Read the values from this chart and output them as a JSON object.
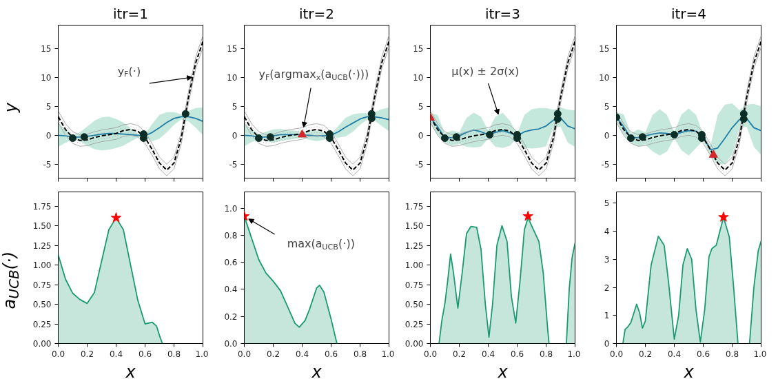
{
  "chart_data": [
    {
      "type": "line",
      "title": "itr=1",
      "ylabel": "y",
      "xlim": [
        0,
        1
      ],
      "ylim": [
        -7.4,
        19
      ],
      "tick_labels": "y",
      "x": [
        0,
        0.05,
        0.1,
        0.15,
        0.2,
        0.25,
        0.3,
        0.35,
        0.4,
        0.45,
        0.5,
        0.55,
        0.6,
        0.65,
        0.7,
        0.75,
        0.8,
        0.85,
        0.9,
        0.95,
        1.0
      ],
      "xticks": [
        {
          "value": 0,
          "label": null
        },
        {
          "value": 0.2,
          "label": null
        },
        {
          "value": 0.4,
          "label": null
        },
        {
          "value": 0.6,
          "label": null
        },
        {
          "value": 0.8,
          "label": null
        },
        {
          "value": 1,
          "label": null
        }
      ],
      "yticks": [
        -5,
        0,
        5,
        10,
        15
      ],
      "series": [
        {
          "color": "#1f7ea8",
          "values": [
            0,
            -0.1,
            -0.3,
            -0.3,
            -0.2,
            0,
            0.2,
            0.3,
            0.3,
            0.2,
            0.1,
            0,
            -0.1,
            0.5,
            1.3,
            2.2,
            2.9,
            3.2,
            3.2,
            2.9,
            2.4
          ],
          "lower": [
            -2,
            -1.3,
            -0.7,
            -1.0,
            -1.8,
            -2.4,
            -2.6,
            -2.5,
            -2.2,
            -1.8,
            -1.1,
            -0.4,
            -0.4,
            -1.0,
            -0.6,
            0.5,
            1.8,
            2.7,
            2.4,
            1.3,
            0
          ],
          "upper": [
            2,
            1,
            0,
            0.5,
            1.5,
            2.5,
            3.1,
            3.2,
            2.8,
            2.2,
            1.2,
            0.3,
            0.2,
            2,
            3.5,
            4,
            4,
            3.6,
            4.2,
            4.7,
            4.8
          ]
        },
        {
          "color": "#a0a0a0",
          "values": [
            2.2,
            0.0,
            -1.4,
            -1.9,
            -1.8,
            -1.4,
            -1.1,
            -0.9,
            -0.7,
            -0.2,
            0.0,
            -0.3,
            -1.4,
            -3.5,
            -5.8,
            -7.0,
            -5.8,
            -1.5,
            5.5,
            11.5,
            15.2
          ]
        },
        {
          "color": "#a0a0a0",
          "values": [
            4.2,
            2.0,
            0.6,
            0.1,
            0.2,
            0.6,
            0.9,
            1.1,
            1.3,
            1.8,
            2.0,
            1.7,
            0.6,
            -1.5,
            -3.8,
            -5.0,
            -3.8,
            0.5,
            7.5,
            13.5,
            17.2
          ]
        },
        {
          "color": "#a0a0a0",
          "line_style": "dotted",
          "values": [
            2.7,
            0.5,
            -0.9,
            -1.4,
            -1.3,
            -0.9,
            -0.6,
            -0.4,
            -0.2,
            0.3,
            0.5,
            0.2,
            -0.9,
            -3.0,
            -5.3,
            -6.5,
            -5.3,
            -1.0,
            6.0,
            12.0,
            15.7
          ]
        },
        {
          "color": "#a0a0a0",
          "line_style": "dotted",
          "values": [
            3.7,
            1.5,
            0.1,
            -0.4,
            -0.3,
            0.1,
            0.4,
            0.6,
            0.8,
            1.3,
            1.5,
            1.2,
            0.1,
            -2.0,
            -4.3,
            -5.5,
            -4.3,
            0.0,
            7.0,
            13.0,
            16.7
          ]
        },
        {
          "color": "#000000",
          "line_style": "dashed",
          "values": [
            3.2,
            1.0,
            -0.4,
            -0.9,
            -0.8,
            -0.4,
            -0.1,
            0.1,
            0.3,
            0.8,
            1.0,
            0.7,
            -0.4,
            -2.5,
            -4.8,
            -6.0,
            -4.8,
            -0.5,
            6.5,
            12.5,
            16.2
          ]
        },
        {
          "type": "scatter",
          "marker": "circle",
          "color": "#0d2e26",
          "x": [
            0.1,
            0.18,
            0.59,
            0.59,
            0.88
          ],
          "values": [
            -0.5,
            -0.3,
            0.2,
            -0.5,
            3.7
          ]
        }
      ],
      "annotations": [
        {
          "text": "y$_{F}$(·)",
          "x": 0.925,
          "y": 10
        }
      ]
    },
    {
      "type": "line",
      "title": "itr=2",
      "xlim": [
        0,
        1
      ],
      "ylim": [
        -7.4,
        19
      ],
      "tick_labels": "y",
      "x": [
        0,
        0.05,
        0.1,
        0.15,
        0.2,
        0.25,
        0.3,
        0.35,
        0.4,
        0.45,
        0.5,
        0.55,
        0.6,
        0.65,
        0.7,
        0.75,
        0.8,
        0.85,
        0.9,
        0.95,
        1.0
      ],
      "xticks": [
        {
          "value": 0,
          "label": null
        },
        {
          "value": 0.2,
          "label": null
        },
        {
          "value": 0.4,
          "label": null
        },
        {
          "value": 0.6,
          "label": null
        },
        {
          "value": 0.8,
          "label": null
        },
        {
          "value": 1,
          "label": null
        }
      ],
      "yticks": [
        -5,
        0,
        5,
        10,
        15
      ],
      "series": [
        {
          "color": "#1f7ea8",
          "values": [
            0,
            -0.1,
            -0.3,
            -0.3,
            -0.1,
            0.1,
            0.1,
            0.1,
            0.1,
            0,
            -0.1,
            -0.1,
            0,
            0.6,
            1.4,
            2.1,
            2.8,
            3.2,
            3.2,
            3.0,
            2.7
          ],
          "lower": [
            -1.9,
            -1.2,
            -0.7,
            -1,
            -1.3,
            -1,
            -0.8,
            -0.6,
            -0.4,
            -0.8,
            -1,
            -0.8,
            -0.3,
            -0.4,
            -0.2,
            0.6,
            1.8,
            2.7,
            2.5,
            1.6,
            0.7
          ],
          "upper": [
            2,
            1,
            0.2,
            0.6,
            1,
            1.1,
            0.9,
            0.8,
            0.6,
            0.8,
            0.8,
            0.5,
            0.2,
            1.6,
            3,
            3.6,
            3.8,
            3.8,
            4,
            4.5,
            4.8
          ]
        },
        {
          "color": "#a0a0a0",
          "values": [
            2.2,
            0.0,
            -1.4,
            -1.9,
            -1.8,
            -1.4,
            -1.1,
            -0.9,
            -0.7,
            -0.2,
            0.0,
            -0.3,
            -1.4,
            -3.5,
            -5.8,
            -7.0,
            -5.8,
            -1.5,
            5.5,
            11.5,
            15.2
          ]
        },
        {
          "color": "#a0a0a0",
          "values": [
            4.2,
            2.0,
            0.6,
            0.1,
            0.2,
            0.6,
            0.9,
            1.1,
            1.3,
            1.8,
            2.0,
            1.7,
            0.6,
            -1.5,
            -3.8,
            -5.0,
            -3.8,
            0.5,
            7.5,
            13.5,
            17.2
          ]
        },
        {
          "color": "#a0a0a0",
          "line_style": "dotted",
          "values": [
            2.7,
            0.5,
            -0.9,
            -1.4,
            -1.3,
            -0.9,
            -0.6,
            -0.4,
            -0.2,
            0.3,
            0.5,
            0.2,
            -0.9,
            -3.0,
            -5.3,
            -6.5,
            -5.3,
            -1.0,
            6.0,
            12.0,
            15.7
          ]
        },
        {
          "color": "#a0a0a0",
          "line_style": "dotted",
          "values": [
            3.7,
            1.5,
            0.1,
            -0.4,
            -0.3,
            0.1,
            0.4,
            0.6,
            0.8,
            1.3,
            1.5,
            1.2,
            0.1,
            -2.0,
            -4.3,
            -5.5,
            -4.3,
            0.0,
            7.0,
            13.0,
            16.7
          ]
        },
        {
          "color": "#000000",
          "line_style": "dashed",
          "values": [
            3.2,
            1.0,
            -0.4,
            -0.9,
            -0.8,
            -0.4,
            -0.1,
            0.1,
            0.3,
            0.8,
            1.0,
            0.7,
            -0.4,
            -2.5,
            -4.8,
            -6.0,
            -4.8,
            -0.5,
            6.5,
            12.5,
            16.2
          ]
        },
        {
          "type": "scatter",
          "marker": "circle",
          "color": "#0d2e26",
          "x": [
            0.1,
            0.18,
            0.59,
            0.59,
            0.88,
            0.88
          ],
          "values": [
            -0.5,
            -0.3,
            0.2,
            -0.5,
            3.7,
            2.9
          ]
        },
        {
          "type": "scatter",
          "marker": "triangle",
          "color": "#d62728",
          "x": [
            0.4
          ],
          "values": [
            0.1
          ]
        }
      ],
      "annotations": [
        {
          "text": "y$_{F}$(argmax$_{x}$(a$_{UCB}$(·)))",
          "x": 0.41,
          "y": 1.4
        }
      ]
    },
    {
      "type": "line",
      "title": "itr=3",
      "xlim": [
        0,
        1
      ],
      "ylim": [
        -7.4,
        19
      ],
      "tick_labels": "y",
      "x": [
        0,
        0.05,
        0.1,
        0.15,
        0.2,
        0.25,
        0.3,
        0.35,
        0.4,
        0.45,
        0.5,
        0.55,
        0.6,
        0.65,
        0.7,
        0.75,
        0.8,
        0.85,
        0.9,
        0.95,
        1.0
      ],
      "xticks": [
        {
          "value": 0,
          "label": null
        },
        {
          "value": 0.2,
          "label": null
        },
        {
          "value": 0.4,
          "label": null
        },
        {
          "value": 0.6,
          "label": null
        },
        {
          "value": 0.8,
          "label": null
        },
        {
          "value": 1,
          "label": null
        }
      ],
      "yticks": [
        -5,
        0,
        5,
        10,
        15
      ],
      "series": [
        {
          "color": "#1f7ea8",
          "values": [
            3.0,
            1.5,
            -0.5,
            -0.4,
            -0.1,
            0.5,
            0.9,
            0.6,
            0.1,
            0.5,
            0.8,
            0.4,
            -0.1,
            0.6,
            0.9,
            1.1,
            1.6,
            2.6,
            3.0,
            1.6,
            1.1
          ],
          "lower": [
            2,
            0,
            -1.3,
            -1.8,
            -1.5,
            -2,
            -2.1,
            -2,
            -0.6,
            -2,
            -2.2,
            -1.8,
            -0.4,
            -2.2,
            -2.3,
            -2.2,
            -1.9,
            1.3,
            1.5,
            -1.3,
            -2.0
          ],
          "upper": [
            3.9,
            3.5,
            0.3,
            0.8,
            0.5,
            3,
            3.9,
            3.2,
            0.8,
            3.2,
            3.9,
            2.5,
            0.2,
            3.5,
            4.5,
            4.7,
            4.7,
            4.4,
            4.8,
            4.4,
            4.3
          ]
        },
        {
          "color": "#a0a0a0",
          "values": [
            2.2,
            0.0,
            -1.4,
            -1.9,
            -1.8,
            -1.4,
            -1.1,
            -0.9,
            -0.7,
            -0.2,
            0.0,
            -0.3,
            -1.4,
            -3.5,
            -5.8,
            -7.0,
            -5.8,
            -1.5,
            5.5,
            11.5,
            15.2
          ]
        },
        {
          "color": "#a0a0a0",
          "values": [
            4.2,
            2.0,
            0.6,
            0.1,
            0.2,
            0.6,
            0.9,
            1.1,
            1.3,
            1.8,
            2.0,
            1.7,
            0.6,
            -1.5,
            -3.8,
            -5.0,
            -3.8,
            0.5,
            7.5,
            13.5,
            17.2
          ]
        },
        {
          "color": "#a0a0a0",
          "line_style": "dotted",
          "values": [
            2.7,
            0.5,
            -0.9,
            -1.4,
            -1.3,
            -0.9,
            -0.6,
            -0.4,
            -0.2,
            0.3,
            0.5,
            0.2,
            -0.9,
            -3.0,
            -5.3,
            -6.5,
            -5.3,
            -1.0,
            6.0,
            12.0,
            15.7
          ]
        },
        {
          "color": "#a0a0a0",
          "line_style": "dotted",
          "values": [
            3.7,
            1.5,
            0.1,
            -0.4,
            -0.3,
            0.1,
            0.4,
            0.6,
            0.8,
            1.3,
            1.5,
            1.2,
            0.1,
            -2.0,
            -4.3,
            -5.5,
            -4.3,
            0.0,
            7.0,
            13.0,
            16.7
          ]
        },
        {
          "color": "#000000",
          "line_style": "dashed",
          "values": [
            3.2,
            1.0,
            -0.4,
            -0.9,
            -0.8,
            -0.4,
            -0.1,
            0.1,
            0.3,
            0.8,
            1.0,
            0.7,
            -0.4,
            -2.5,
            -4.8,
            -6.0,
            -4.8,
            -0.5,
            6.5,
            12.5,
            16.2
          ]
        },
        {
          "type": "scatter",
          "marker": "circle",
          "color": "#0d2e26",
          "x": [
            0.1,
            0.18,
            0.41,
            0.6,
            0.6,
            0.88,
            0.88
          ],
          "values": [
            -0.5,
            -0.3,
            0.1,
            0.1,
            -0.5,
            3.7,
            2.8
          ]
        },
        {
          "type": "scatter",
          "marker": "triangle",
          "color": "#d62728",
          "x": [
            0
          ],
          "values": [
            3.0
          ]
        }
      ],
      "annotations": [
        {
          "text": "μ(x) ± 2σ(x)",
          "x": 0.47,
          "y": 3.6
        }
      ]
    },
    {
      "type": "line",
      "title": "itr=4",
      "xlim": [
        0,
        1
      ],
      "ylim": [
        -7.4,
        19
      ],
      "tick_labels": "y",
      "x": [
        0,
        0.05,
        0.1,
        0.15,
        0.2,
        0.25,
        0.3,
        0.35,
        0.4,
        0.45,
        0.5,
        0.55,
        0.6,
        0.65,
        0.7,
        0.75,
        0.8,
        0.85,
        0.9,
        0.95,
        1.0
      ],
      "xticks": [
        {
          "value": 0,
          "label": null
        },
        {
          "value": 0.2,
          "label": null
        },
        {
          "value": 0.4,
          "label": null
        },
        {
          "value": 0.6,
          "label": null
        },
        {
          "value": 0.8,
          "label": null
        },
        {
          "value": 1,
          "label": null
        }
      ],
      "yticks": [
        -5,
        0,
        5,
        10,
        15
      ],
      "series": [
        {
          "color": "#1f7ea8",
          "values": [
            3.1,
            1.5,
            -0.5,
            -0.4,
            -0.1,
            0.2,
            0.4,
            0.3,
            0.1,
            0.5,
            0.8,
            0.7,
            -0.3,
            -2.5,
            -2.2,
            -0.5,
            1.3,
            2.7,
            2.9,
            1.3,
            0.8
          ],
          "lower": [
            2.2,
            0,
            -1.3,
            -2,
            -1.6,
            -2.8,
            -3.5,
            -2.8,
            -0.5,
            -2.6,
            -3.5,
            -2.2,
            -0.9,
            -3.6,
            -5,
            -5.0,
            -3.3,
            1.2,
            1.5,
            -2,
            -3.4
          ],
          "upper": [
            4,
            3.6,
            0.3,
            1,
            0.5,
            3.5,
            4.5,
            3.5,
            0.5,
            3.6,
            4.6,
            3.5,
            0.2,
            -1.8,
            3.5,
            5.3,
            5.5,
            4.3,
            5.3,
            5.4,
            5
          ]
        },
        {
          "color": "#a0a0a0",
          "values": [
            2.2,
            0.0,
            -1.4,
            -1.9,
            -1.8,
            -1.4,
            -1.1,
            -0.9,
            -0.7,
            -0.2,
            0.0,
            -0.3,
            -1.4,
            -3.5,
            -5.8,
            -7.0,
            -5.8,
            -1.5,
            5.5,
            11.5,
            15.2
          ]
        },
        {
          "color": "#a0a0a0",
          "values": [
            4.2,
            2.0,
            0.6,
            0.1,
            0.2,
            0.6,
            0.9,
            1.1,
            1.3,
            1.8,
            2.0,
            1.7,
            0.6,
            -1.5,
            -3.8,
            -5.0,
            -3.8,
            0.5,
            7.5,
            13.5,
            17.2
          ]
        },
        {
          "color": "#a0a0a0",
          "line_style": "dotted",
          "values": [
            2.7,
            0.5,
            -0.9,
            -1.4,
            -1.3,
            -0.9,
            -0.6,
            -0.4,
            -0.2,
            0.3,
            0.5,
            0.2,
            -0.9,
            -3.0,
            -5.3,
            -6.5,
            -5.3,
            -1.0,
            6.0,
            12.0,
            15.7
          ]
        },
        {
          "color": "#a0a0a0",
          "line_style": "dotted",
          "values": [
            3.7,
            1.5,
            0.1,
            -0.4,
            -0.3,
            0.1,
            0.4,
            0.6,
            0.8,
            1.3,
            1.5,
            1.2,
            0.1,
            -2.0,
            -4.3,
            -5.5,
            -4.3,
            0.0,
            7.0,
            13.0,
            16.7
          ]
        },
        {
          "color": "#000000",
          "line_style": "dashed",
          "values": [
            3.2,
            1.0,
            -0.4,
            -0.9,
            -0.8,
            -0.4,
            -0.1,
            0.1,
            0.3,
            0.8,
            1.0,
            0.7,
            -0.4,
            -2.5,
            -4.8,
            -6.0,
            -4.8,
            -0.5,
            6.5,
            12.5,
            16.2
          ]
        },
        {
          "type": "scatter",
          "marker": "circle",
          "color": "#0d2e26",
          "x": [
            0,
            0.1,
            0.18,
            0.4,
            0.59,
            0.59,
            0.88,
            0.88
          ],
          "values": [
            3.1,
            -0.5,
            -0.3,
            0.1,
            0.1,
            -0.5,
            3.7,
            2.8
          ]
        },
        {
          "type": "scatter",
          "marker": "triangle",
          "color": "#d62728",
          "x": [
            0.67
          ],
          "values": [
            -3.4
          ]
        }
      ]
    },
    {
      "type": "area",
      "xlabel": "x",
      "ylabel": "a$_{UCB}$(·)",
      "xlim": [
        0,
        1
      ],
      "ylim": [
        0,
        1.93
      ],
      "xticks": [
        {
          "value": 0,
          "label": "0.0"
        },
        {
          "value": 0.2,
          "label": "0.2"
        },
        {
          "value": 0.4,
          "label": "0.4"
        },
        {
          "value": 0.6,
          "label": "0.6"
        },
        {
          "value": 0.8,
          "label": "0.8"
        },
        {
          "value": 1,
          "label": "1.0"
        }
      ],
      "yticks": [
        {
          "value": 0,
          "label": "0.00"
        },
        {
          "value": 0.25,
          "label": "0.25"
        },
        {
          "value": 0.5,
          "label": "0.50"
        },
        {
          "value": 0.75,
          "label": "0.75"
        },
        {
          "value": 1,
          "label": "1.00"
        },
        {
          "value": 1.25,
          "label": "1.25"
        },
        {
          "value": 1.5,
          "label": "1.50"
        },
        {
          "value": 1.75,
          "label": "1.75"
        }
      ],
      "series": [
        {
          "color": "#1a9a73",
          "x": [
            0,
            0.05,
            0.1,
            0.15,
            0.2,
            0.25,
            0.3,
            0.35,
            0.4,
            0.45,
            0.5,
            0.55,
            0.6,
            0.65,
            0.68,
            0.7,
            0.72
          ],
          "values": [
            1.13,
            0.82,
            0.64,
            0.56,
            0.51,
            0.65,
            1.05,
            1.45,
            1.6,
            1.45,
            1.0,
            0.55,
            0.25,
            0.27,
            0.22,
            0.1,
            0
          ]
        },
        {
          "type": "scatter",
          "marker": "star",
          "color": "#ff0000",
          "x": [
            0.4
          ],
          "values": [
            1.6
          ]
        }
      ]
    },
    {
      "type": "area",
      "xlabel": "x",
      "xlim": [
        0,
        1
      ],
      "ylim": [
        0,
        1.12
      ],
      "xticks": [
        {
          "value": 0,
          "label": "0.0"
        },
        {
          "value": 0.2,
          "label": "0.2"
        },
        {
          "value": 0.4,
          "label": "0.4"
        },
        {
          "value": 0.6,
          "label": "0.6"
        },
        {
          "value": 0.8,
          "label": "0.8"
        },
        {
          "value": 1,
          "label": "1.0"
        }
      ],
      "yticks": [
        {
          "value": 0,
          "label": "0.0"
        },
        {
          "value": 0.2,
          "label": "0.2"
        },
        {
          "value": 0.4,
          "label": "0.4"
        },
        {
          "value": 0.6,
          "label": "0.6"
        },
        {
          "value": 0.8,
          "label": "0.8"
        },
        {
          "value": 1,
          "label": "1.0"
        }
      ],
      "series": [
        {
          "color": "#1a9a73",
          "x": [
            0,
            0.05,
            0.1,
            0.15,
            0.2,
            0.25,
            0.3,
            0.35,
            0.38,
            0.42,
            0.45,
            0.5,
            0.52,
            0.55,
            0.6,
            0.64
          ],
          "values": [
            0.94,
            0.78,
            0.62,
            0.52,
            0.46,
            0.39,
            0.27,
            0.15,
            0.12,
            0.17,
            0.25,
            0.41,
            0.43,
            0.38,
            0.18,
            0
          ]
        },
        {
          "type": "scatter",
          "marker": "star",
          "color": "#ff0000",
          "x": [
            0
          ],
          "values": [
            0.94
          ]
        }
      ],
      "annotations": [
        {
          "text": "max(a$_{UCB}$(·))",
          "x": 0.03,
          "y": 0.92
        }
      ]
    },
    {
      "type": "area",
      "xlabel": "x",
      "xlim": [
        0,
        1
      ],
      "ylim": [
        0,
        1.93
      ],
      "xticks": [
        {
          "value": 0,
          "label": "0.0"
        },
        {
          "value": 0.2,
          "label": "0.2"
        },
        {
          "value": 0.4,
          "label": "0.4"
        },
        {
          "value": 0.6,
          "label": "0.6"
        },
        {
          "value": 0.8,
          "label": "0.8"
        },
        {
          "value": 1,
          "label": "1.0"
        }
      ],
      "yticks": [
        {
          "value": 0,
          "label": "0.00"
        },
        {
          "value": 0.25,
          "label": "0.25"
        },
        {
          "value": 0.5,
          "label": "0.50"
        },
        {
          "value": 0.75,
          "label": "0.75"
        },
        {
          "value": 1,
          "label": "1.00"
        },
        {
          "value": 1.25,
          "label": "1.25"
        },
        {
          "value": 1.5,
          "label": "1.50"
        },
        {
          "value": 1.75,
          "label": "1.75"
        }
      ],
      "series": [
        {
          "color": "#1a9a73",
          "x": [
            0.06,
            0.08,
            0.1,
            0.12,
            0.14,
            0.16,
            0.19,
            0.22,
            0.25,
            0.28,
            0.32,
            0.35,
            0.38,
            0.405,
            0.43,
            0.46,
            0.495,
            0.53,
            0.56,
            0.59,
            0.62,
            0.65,
            0.675,
            0.7,
            0.75,
            0.78,
            0.81,
            0.82,
            0.88,
            0.94,
            0.96,
            0.98,
            1.0
          ],
          "values": [
            0,
            0.3,
            0.5,
            0.8,
            1.14,
            0.9,
            0.45,
            0.9,
            1.4,
            1.49,
            1.48,
            1.2,
            0.5,
            0.08,
            0.5,
            1.25,
            1.5,
            1.3,
            0.6,
            0.26,
            0.8,
            1.45,
            1.6,
            1.5,
            1.3,
            0.9,
            0.2,
            0,
            null,
            0,
            0.7,
            1.1,
            1.28
          ]
        },
        {
          "type": "scatter",
          "marker": "star",
          "color": "#ff0000",
          "x": [
            0.675
          ],
          "values": [
            1.62
          ]
        }
      ]
    },
    {
      "type": "area",
      "xlabel": "x",
      "xlim": [
        0,
        1
      ],
      "ylim": [
        0,
        5.4
      ],
      "xticks": [
        {
          "value": 0,
          "label": "0.0"
        },
        {
          "value": 0.2,
          "label": "0.2"
        },
        {
          "value": 0.4,
          "label": "0.4"
        },
        {
          "value": 0.6,
          "label": "0.6"
        },
        {
          "value": 0.8,
          "label": "0.8"
        },
        {
          "value": 1,
          "label": "1.0"
        }
      ],
      "yticks": [
        0,
        1,
        2,
        3,
        4,
        5
      ],
      "series": [
        {
          "color": "#1a9a73",
          "x": [
            0.045,
            0.06,
            0.08,
            0.1,
            0.14,
            0.16,
            0.18,
            0.2,
            0.24,
            0.29,
            0.33,
            0.36,
            0.4,
            0.43,
            0.46,
            0.49,
            0.52,
            0.55,
            0.58,
            0.61,
            0.64,
            0.66,
            0.69,
            0.74,
            0.78,
            0.81,
            0.84,
            0.88,
            0.92,
            0.95,
            0.98,
            1.0
          ],
          "values": [
            0,
            0.5,
            0.6,
            0.75,
            1.4,
            1.1,
            0.55,
            0.8,
            2.8,
            3.82,
            3.5,
            2.2,
            0.15,
            1,
            2.8,
            3.38,
            3.0,
            1.2,
            0.05,
            1.2,
            3.1,
            3.38,
            3.5,
            4.5,
            3.8,
            2,
            0,
            null,
            0,
            2.0,
            3.3,
            3.65
          ]
        },
        {
          "type": "scatter",
          "marker": "star",
          "color": "#ff0000",
          "x": [
            0.74
          ],
          "values": [
            4.5
          ]
        }
      ]
    }
  ]
}
